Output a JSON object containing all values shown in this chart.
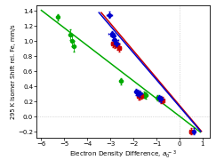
{
  "xlabel": "Electron Density Difference, $a_0^{\\,-3}$",
  "ylabel": "295 K Isomer Shift rel. Fe, mm/s",
  "xlim": [
    -6.2,
    1.3
  ],
  "ylim": [
    -0.28,
    1.48
  ],
  "xticks": [
    -6,
    -5,
    -4,
    -3,
    -2,
    -1,
    0,
    1
  ],
  "yticks": [
    -0.2,
    0.0,
    0.2,
    0.4,
    0.6,
    0.8,
    1.0,
    1.2,
    1.4
  ],
  "green_data_x": [
    -5.3,
    -4.75,
    -4.65,
    -4.6,
    -2.55,
    -1.65,
    -1.55,
    -1.5,
    -1.45,
    -0.95
  ],
  "green_data_y": [
    1.32,
    1.09,
    1.0,
    0.93,
    0.47,
    0.285,
    0.29,
    0.285,
    0.28,
    0.25
  ],
  "green_xerr": [
    0.05,
    0.07,
    0.07,
    0.07,
    0.07,
    0.07,
    0.07,
    0.07,
    0.07,
    0.07
  ],
  "green_yerr": [
    0.04,
    0.07,
    0.07,
    0.07,
    0.04,
    0.04,
    0.04,
    0.04,
    0.04,
    0.04
  ],
  "red_data_x": [
    -2.9,
    -2.82,
    -2.76,
    -2.7,
    -2.62,
    -1.78,
    -1.72,
    -1.65,
    -0.82,
    -0.75,
    0.5
  ],
  "red_data_y": [
    0.97,
    0.955,
    0.97,
    0.94,
    0.915,
    0.27,
    0.27,
    0.275,
    0.225,
    0.22,
    -0.195
  ],
  "red_xerr": [
    0.09,
    0.09,
    0.09,
    0.09,
    0.09,
    0.09,
    0.09,
    0.09,
    0.07,
    0.07,
    0.06
  ],
  "red_yerr": [
    0.05,
    0.05,
    0.05,
    0.05,
    0.05,
    0.04,
    0.04,
    0.04,
    0.04,
    0.04,
    0.04
  ],
  "blue_data_x": [
    -3.05,
    -2.95,
    -2.88,
    -2.8,
    -2.73,
    -1.88,
    -1.8,
    -1.72,
    -0.9,
    -0.82,
    0.6
  ],
  "blue_data_y": [
    1.35,
    1.1,
    1.07,
    1.02,
    0.97,
    0.33,
    0.315,
    0.305,
    0.245,
    0.235,
    -0.195
  ],
  "blue_xerr": [
    0.12,
    0.12,
    0.12,
    0.12,
    0.12,
    0.1,
    0.1,
    0.1,
    0.08,
    0.08,
    0.06
  ],
  "blue_yerr": [
    0.04,
    0.04,
    0.04,
    0.04,
    0.04,
    0.04,
    0.04,
    0.04,
    0.04,
    0.04,
    0.04
  ],
  "green_line_x": [
    -6.0,
    0.9
  ],
  "green_line_y": [
    1.41,
    -0.205
  ],
  "red_line_x": [
    -3.4,
    0.95
  ],
  "red_line_y": [
    1.38,
    -0.195
  ],
  "blue_line_x": [
    -3.5,
    0.92
  ],
  "blue_line_y": [
    1.38,
    -0.195
  ],
  "green_color": "#00aa00",
  "red_color": "#cc0000",
  "blue_color": "#0000cc",
  "dot_line_color": "#bbbbbb",
  "marker_size": 2.8,
  "elinewidth": 0.6,
  "capsize": 1.0,
  "linewidth": 1.1
}
